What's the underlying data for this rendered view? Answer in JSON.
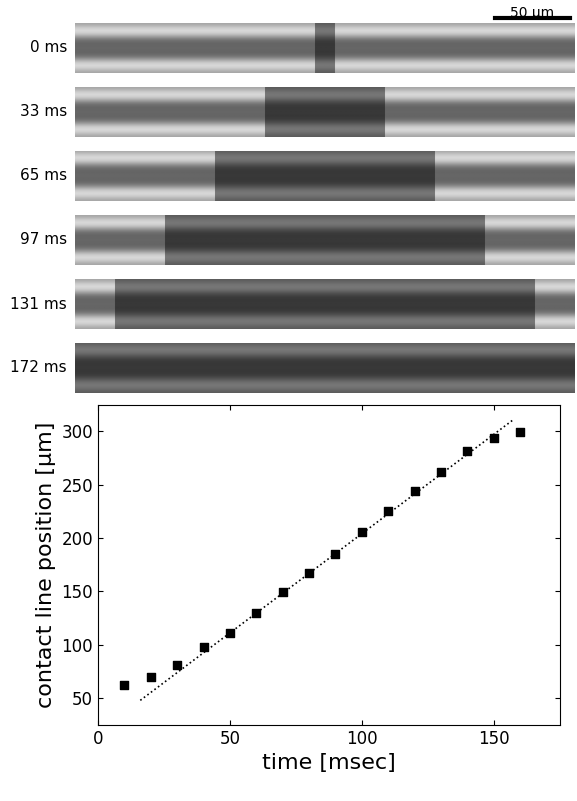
{
  "panels": {
    "scale_bar": "50 µm",
    "frames": [
      "0 ms",
      "33 ms",
      "65 ms",
      "97 ms",
      "131 ms",
      "172 ms"
    ]
  },
  "chart_data": {
    "type": "scatter",
    "x_label": "time [msec]",
    "y_label": "contact line position [µm]",
    "series": [
      {
        "type": "scatter",
        "marker": "square",
        "color": "#000000",
        "x": [
          10,
          20,
          30,
          40,
          50,
          60,
          70,
          80,
          90,
          100,
          110,
          120,
          130,
          140,
          150,
          160
        ],
        "values": [
          62,
          70,
          81,
          98,
          111,
          130,
          149,
          167,
          185,
          206,
          225,
          244,
          262,
          281,
          294,
          299
        ]
      },
      {
        "type": "line",
        "line_style": "dotted",
        "color": "#000000",
        "x": [
          16,
          157
        ],
        "values": [
          48,
          310
        ]
      }
    ],
    "xlim": [
      0,
      175
    ],
    "xticks": [
      0,
      50,
      100,
      150
    ],
    "ylim": [
      25,
      325
    ],
    "yticks": [
      50,
      100,
      150,
      200,
      250,
      300
    ],
    "grid": false
  }
}
